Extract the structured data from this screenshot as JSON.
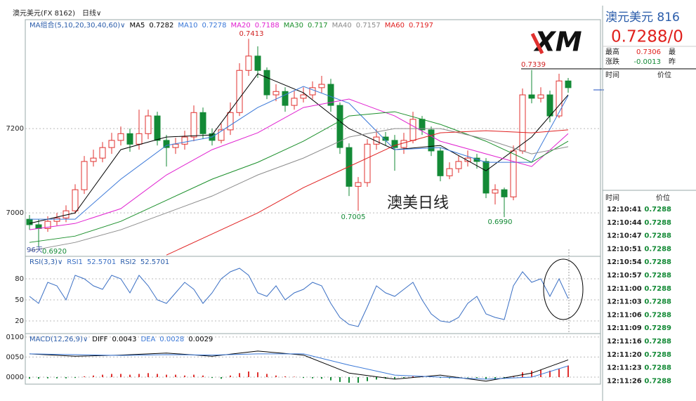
{
  "header": {
    "symbol": "澳元美元(FX 8162)",
    "period": "日线∨"
  },
  "chart_data": [
    {
      "type": "candlestick",
      "legend_title": "MA组合(5,10,20,30,40,60)∨",
      "up_color": "#e0312f",
      "down_color": "#138a36",
      "ylim": [
        0.6897,
        0.7455
      ],
      "yticks": [
        {
          "value": 0.72,
          "label": "7200"
        },
        {
          "value": 0.7,
          "label": "7000"
        }
      ],
      "grid": true,
      "open": [
        0.6985,
        0.6972,
        0.6963,
        0.698,
        0.6988,
        0.7005,
        0.7055,
        0.7122,
        0.713,
        0.7155,
        0.7172,
        0.7188,
        0.7163,
        0.7188,
        0.723,
        0.7172,
        0.7155,
        0.7163,
        0.718,
        0.7238,
        0.7188,
        0.7172,
        0.7197,
        0.7238,
        0.7338,
        0.7372,
        0.7338,
        0.728,
        0.7288,
        0.7255,
        0.7272,
        0.728,
        0.7297,
        0.7305,
        0.7255,
        0.7155,
        0.7063,
        0.7072,
        0.7163,
        0.718,
        0.7172,
        0.7155,
        0.7172,
        0.7222,
        0.7197,
        0.7147,
        0.7088,
        0.7105,
        0.7122,
        0.713,
        0.7122,
        0.7047,
        0.7055,
        0.7038,
        0.7147,
        0.728,
        0.7272,
        0.728,
        0.723,
        0.7313
      ],
      "high": [
        0.6995,
        0.6985,
        0.6992,
        0.7,
        0.7018,
        0.7068,
        0.7135,
        0.715,
        0.7168,
        0.719,
        0.7205,
        0.72,
        0.7245,
        0.7245,
        0.724,
        0.7185,
        0.7178,
        0.7195,
        0.7255,
        0.725,
        0.72,
        0.7212,
        0.7262,
        0.7355,
        0.7413,
        0.7395,
        0.7345,
        0.7305,
        0.7298,
        0.729,
        0.7298,
        0.7312,
        0.7325,
        0.7318,
        0.7262,
        0.7165,
        0.7085,
        0.7175,
        0.7198,
        0.7192,
        0.7185,
        0.719,
        0.724,
        0.723,
        0.7205,
        0.7155,
        0.712,
        0.7135,
        0.7148,
        0.714,
        0.713,
        0.7068,
        0.706,
        0.716,
        0.7295,
        0.7339,
        0.7298,
        0.729,
        0.733,
        0.732
      ],
      "low": [
        0.696,
        0.692,
        0.6955,
        0.697,
        0.6978,
        0.6998,
        0.7045,
        0.711,
        0.712,
        0.714,
        0.716,
        0.7145,
        0.715,
        0.7175,
        0.716,
        0.711,
        0.714,
        0.715,
        0.717,
        0.7175,
        0.716,
        0.7165,
        0.7185,
        0.723,
        0.7325,
        0.732,
        0.727,
        0.7265,
        0.724,
        0.7245,
        0.7262,
        0.727,
        0.7285,
        0.724,
        0.714,
        0.704,
        0.7005,
        0.7062,
        0.715,
        0.716,
        0.71,
        0.714,
        0.7165,
        0.7185,
        0.7135,
        0.7075,
        0.708,
        0.7095,
        0.711,
        0.7105,
        0.7035,
        0.702,
        0.699,
        0.703,
        0.714,
        0.726,
        0.7262,
        0.7215,
        0.7225,
        0.7285
      ],
      "close": [
        0.6972,
        0.6963,
        0.698,
        0.6988,
        0.7005,
        0.7055,
        0.7122,
        0.713,
        0.7155,
        0.7172,
        0.7188,
        0.7163,
        0.7188,
        0.723,
        0.7172,
        0.7155,
        0.7163,
        0.718,
        0.7238,
        0.7188,
        0.7172,
        0.7197,
        0.7238,
        0.7338,
        0.7372,
        0.7338,
        0.728,
        0.7288,
        0.7255,
        0.7272,
        0.728,
        0.7297,
        0.7305,
        0.7255,
        0.7155,
        0.7063,
        0.7072,
        0.7163,
        0.718,
        0.7172,
        0.7155,
        0.7172,
        0.7222,
        0.7197,
        0.7147,
        0.7088,
        0.7105,
        0.7122,
        0.713,
        0.7122,
        0.7047,
        0.7055,
        0.7038,
        0.7147,
        0.728,
        0.7272,
        0.728,
        0.723,
        0.7313,
        0.7297
      ],
      "series": [
        {
          "name": "MA5",
          "color": "#000000",
          "legend_value": 0.7282,
          "x": [
            0,
            5,
            10,
            15,
            20,
            25,
            30,
            35,
            40,
            45,
            50,
            55,
            59
          ],
          "values": [
            0.6975,
            0.7,
            0.715,
            0.718,
            0.7185,
            0.733,
            0.7285,
            0.72,
            0.715,
            0.716,
            0.71,
            0.718,
            0.728
          ]
        },
        {
          "name": "MA10",
          "color": "#3a78d8",
          "legend_value": 0.7278,
          "x": [
            0,
            5,
            10,
            15,
            20,
            25,
            30,
            35,
            40,
            45,
            50,
            55,
            59
          ],
          "values": [
            0.6985,
            0.6985,
            0.708,
            0.716,
            0.718,
            0.725,
            0.73,
            0.726,
            0.715,
            0.7155,
            0.712,
            0.712,
            0.7278
          ]
        },
        {
          "name": "MA20",
          "color": "#e020d0",
          "legend_value": 0.7188,
          "x": [
            0,
            5,
            10,
            15,
            20,
            25,
            30,
            35,
            40,
            45,
            50,
            55,
            59
          ],
          "values": [
            0.696,
            0.6975,
            0.701,
            0.709,
            0.715,
            0.719,
            0.725,
            0.727,
            0.723,
            0.717,
            0.714,
            0.711,
            0.7188
          ]
        },
        {
          "name": "MA30",
          "color": "#1a8f2a",
          "legend_value": 0.717,
          "x": [
            0,
            5,
            10,
            15,
            20,
            25,
            30,
            35,
            40,
            45,
            50,
            55,
            59
          ],
          "values": [
            0.693,
            0.6945,
            0.698,
            0.703,
            0.708,
            0.712,
            0.717,
            0.723,
            0.724,
            0.721,
            0.717,
            0.712,
            0.717
          ]
        },
        {
          "name": "MA40",
          "color": "#8c8c8c",
          "legend_value": 0.7157,
          "x": [
            0,
            5,
            10,
            15,
            20,
            25,
            30,
            35,
            40,
            45,
            50,
            55,
            59
          ],
          "values": [
            0.691,
            0.693,
            0.696,
            0.7,
            0.704,
            0.709,
            0.713,
            0.718,
            0.72,
            0.72,
            0.7175,
            0.714,
            0.7157
          ]
        },
        {
          "name": "MA60",
          "color": "#e02020",
          "legend_value": 0.7197,
          "x": [
            0,
            5,
            10,
            15,
            20,
            25,
            30,
            35,
            40,
            45,
            50,
            55,
            59
          ],
          "values": [
            null,
            null,
            null,
            0.69,
            0.695,
            0.7,
            0.706,
            0.711,
            0.716,
            0.719,
            0.7195,
            0.719,
            0.7197
          ]
        }
      ],
      "annotations": [
        "0.7413",
        "0.7005",
        "0.6990",
        "96天",
        "0.6920",
        "0.7339"
      ],
      "overlay_text": "澳美日线",
      "logo": "XM"
    },
    {
      "type": "line",
      "legend_title": "RSI(3,3)∨",
      "ylim": [
        2,
        110
      ],
      "yticks": [
        80,
        50,
        20
      ],
      "grid": true,
      "series": [
        {
          "name": "RSI1",
          "color": "#3a6fc4",
          "legend_value": 52.5701,
          "values": [
            55,
            45,
            75,
            70,
            50,
            85,
            80,
            70,
            65,
            85,
            80,
            60,
            85,
            70,
            50,
            45,
            60,
            75,
            65,
            45,
            60,
            80,
            90,
            95,
            85,
            60,
            55,
            70,
            50,
            60,
            65,
            75,
            70,
            45,
            25,
            15,
            12,
            40,
            70,
            60,
            55,
            65,
            75,
            50,
            30,
            20,
            18,
            25,
            45,
            55,
            30,
            25,
            22,
            70,
            90,
            75,
            80,
            55,
            80,
            52
          ]
        }
      ],
      "extra_legend": [
        {
          "name": "RSI2",
          "legend_value": 52.5701
        }
      ]
    },
    {
      "type": "macd",
      "legend_title": "MACD(12,26,9)∨",
      "ylim": [
        -0.0014,
        0.0105
      ],
      "yticks": [
        {
          "value": 0.01,
          "label": "0100"
        },
        {
          "value": 0.005,
          "label": "0050"
        },
        {
          "value": 0,
          "label": "0000"
        }
      ],
      "series": [
        {
          "name": "DIFF",
          "color": "#000000",
          "legend_value": 0.0043,
          "x": [
            0,
            5,
            10,
            15,
            20,
            25,
            30,
            35,
            40,
            45,
            50,
            55,
            59
          ],
          "values": [
            0.0058,
            0.0052,
            0.0055,
            0.006,
            0.0052,
            0.0065,
            0.0055,
            0.001,
            -0.0005,
            0.0005,
            -0.001,
            0.001,
            0.0043
          ]
        },
        {
          "name": "DEA",
          "color": "#3a78d8",
          "legend_value": 0.0028,
          "x": [
            0,
            5,
            10,
            15,
            20,
            25,
            30,
            35,
            40,
            45,
            50,
            55,
            59
          ],
          "values": [
            0.0058,
            0.0056,
            0.0054,
            0.0056,
            0.0055,
            0.0058,
            0.0058,
            0.003,
            0.0005,
            0.0,
            -0.0005,
            0.0,
            0.0028
          ]
        }
      ],
      "histogram": {
        "up_color": "#e0312f",
        "down_color": "#138a36",
        "legend_value": 0.0029,
        "values": [
          -0.0004,
          -0.0004,
          -0.0003,
          -0.0003,
          -0.0003,
          -0.0002,
          0.0002,
          0.0004,
          0.0006,
          0.0008,
          0.0008,
          0.0006,
          0.0008,
          0.001,
          0.0008,
          0.0006,
          0.0006,
          0.0004,
          0.0006,
          0.0004,
          -0.0002,
          -0.0004,
          0.0004,
          0.001,
          0.0014,
          0.0012,
          0.0008,
          0.0004,
          0.0002,
          0.0001,
          -0.0002,
          -0.0003,
          -0.0004,
          -0.0008,
          -0.0012,
          -0.0016,
          -0.0015,
          -0.001,
          -0.0006,
          -0.0004,
          -0.0004,
          -0.0002,
          0.0002,
          0.0003,
          0.0002,
          -0.0002,
          -0.0003,
          -0.0002,
          -0.0001,
          -0.0002,
          -0.0005,
          -0.0006,
          -0.0004,
          0.0002,
          0.0012,
          0.0016,
          0.0018,
          0.0016,
          0.002,
          0.0029
        ]
      }
    }
  ],
  "quote": {
    "name": "澳元美元 816",
    "price": "0.7288/0",
    "high_label": "最高",
    "high": "0.7306",
    "high_more": "最",
    "change_label": "涨跌",
    "change": "-0.0013",
    "change_more": "昨",
    "time_header": "时间",
    "price_header": "价位"
  },
  "ticks": {
    "time_header": "时间",
    "price_header": "价位",
    "rows": [
      [
        "12:10:41",
        "0.7288"
      ],
      [
        "12:10:44",
        "0.7288"
      ],
      [
        "12:10:47",
        "0.7288"
      ],
      [
        "12:10:51",
        "0.7288"
      ],
      [
        "12:10:54",
        "0.7288"
      ],
      [
        "12:10:57",
        "0.7288"
      ],
      [
        "12:11:00",
        "0.7288"
      ],
      [
        "12:11:03",
        "0.7288"
      ],
      [
        "12:11:06",
        "0.7288"
      ],
      [
        "12:11:09",
        "0.7289"
      ],
      [
        "12:11:16",
        "0.7288"
      ],
      [
        "12:11:20",
        "0.7288"
      ],
      [
        "12:11:23",
        "0.7288"
      ],
      [
        "12:11:26",
        "0.7288"
      ]
    ]
  }
}
